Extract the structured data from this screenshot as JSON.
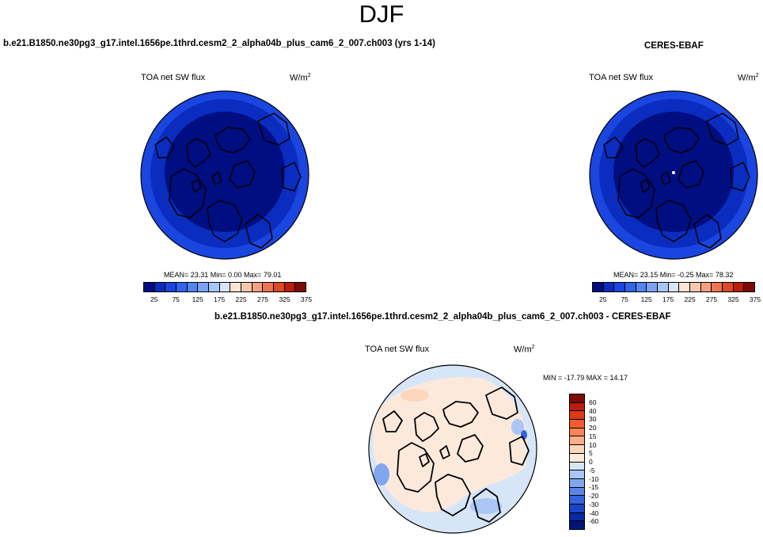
{
  "page": {
    "season": "DJF",
    "model_case_title": "b.e21.B1850.ne30pg3_g17.intel.1656pe.1thrd.cesm2_2_alpha04b_plus_cam6_2_007.ch003 (yrs 1-14)",
    "obs_title": "CERES-EBAF",
    "diff_title": "b.e21.B1850.ne30pg3_g17.intel.1656pe.1thrd.cesm2_2_alpha04b_plus_cam6_2_007.ch003 - CERES-EBAF"
  },
  "panels": {
    "model": {
      "label": "TOA net SW flux",
      "unit_base": "W/m",
      "unit_exp": "2",
      "stats": "MEAN=  23.31  Min=   0.00  Max=  79.01"
    },
    "obs": {
      "label": "TOA net SW flux",
      "unit_base": "W/m",
      "unit_exp": "2",
      "stats": "MEAN=  23.15  Min=  -0.25  Max=  78.32"
    },
    "diff": {
      "label": "TOA net SW flux",
      "unit_base": "W/m",
      "unit_exp": "2",
      "minmax": "MIN = -17.79 MAX =  14.17"
    }
  },
  "abs_colorbar": {
    "colors": [
      "#000e82",
      "#0a2dbf",
      "#1a45df",
      "#3264ec",
      "#5285f0",
      "#7aa4f2",
      "#a8c6f5",
      "#d6e6f8",
      "#fbe4d3",
      "#f9c7ac",
      "#f5a07e",
      "#ec7452",
      "#dd4826",
      "#b81f0c",
      "#7d0b03"
    ],
    "tick_labels": [
      "25",
      "75",
      "125",
      "175",
      "225",
      "275",
      "325",
      "375"
    ]
  },
  "diff_colorbar": {
    "colors": [
      "#7d0b03",
      "#b81f0c",
      "#dd3a14",
      "#f25d2b",
      "#f88558",
      "#fbad89",
      "#fcd6bd",
      "#feeadb",
      "#d6e6f8",
      "#aac6f4",
      "#80a6ee",
      "#5a86e8",
      "#3564df",
      "#1a45c8",
      "#0a28a8",
      "#001478"
    ],
    "tick_labels": [
      "60",
      "40",
      "30",
      "20",
      "15",
      "10",
      "5",
      "0",
      "-5",
      "-10",
      "-15",
      "-20",
      "-30",
      "-40",
      "-60"
    ]
  }
}
